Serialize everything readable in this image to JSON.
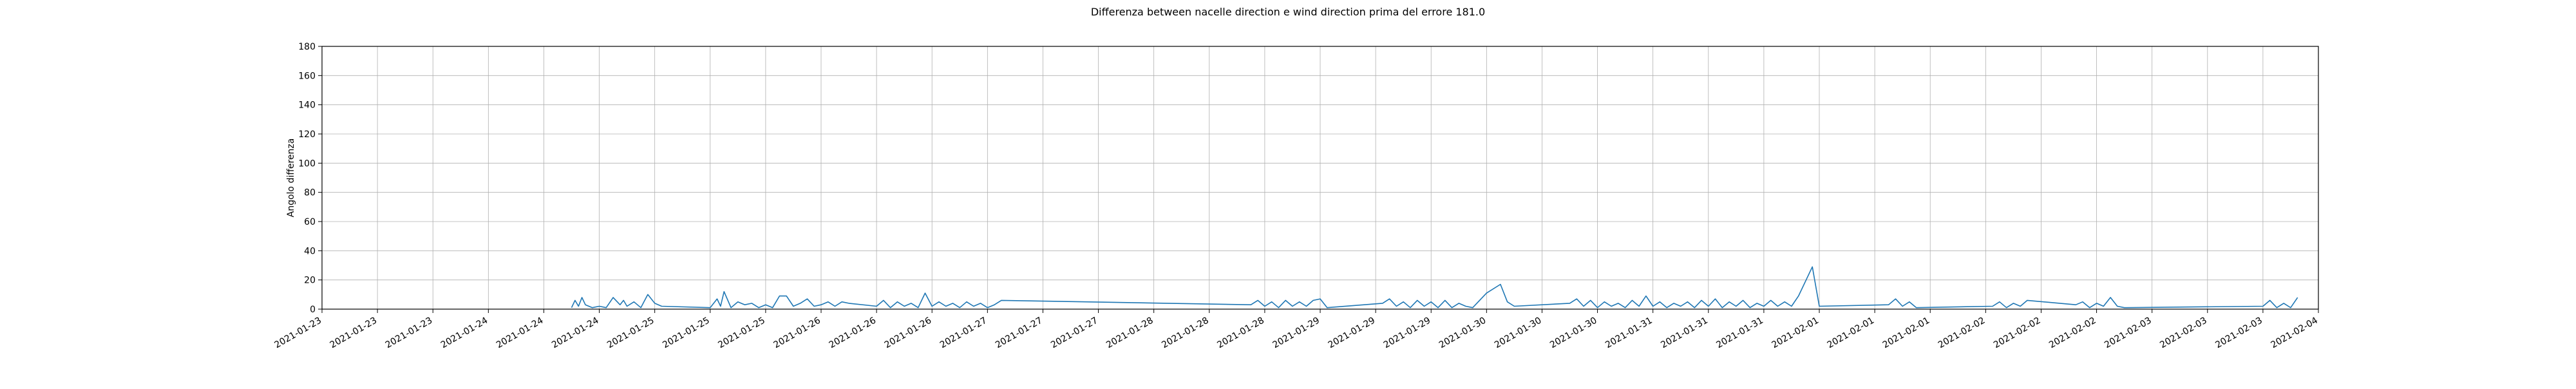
{
  "chart_data": {
    "type": "line",
    "title": "Differenza between nacelle direction e wind direction prima del errore 181.0",
    "xlabel": "",
    "ylabel": "Angolo differenza",
    "ylim": [
      0,
      180
    ],
    "yticks": [
      0,
      20,
      40,
      60,
      80,
      100,
      120,
      140,
      160,
      180
    ],
    "xlim": [
      "2021-01-23 00:00",
      "2021-02-04 00:00"
    ],
    "xticks": [
      {
        "t": "2021-01-23 00:00",
        "label": "2021-01-23"
      },
      {
        "t": "2021-01-23 08:00",
        "label": "2021-01-23"
      },
      {
        "t": "2021-01-23 16:00",
        "label": "2021-01-23"
      },
      {
        "t": "2021-01-24 00:00",
        "label": "2021-01-24"
      },
      {
        "t": "2021-01-24 08:00",
        "label": "2021-01-24"
      },
      {
        "t": "2021-01-24 16:00",
        "label": "2021-01-24"
      },
      {
        "t": "2021-01-25 00:00",
        "label": "2021-01-25"
      },
      {
        "t": "2021-01-25 08:00",
        "label": "2021-01-25"
      },
      {
        "t": "2021-01-25 16:00",
        "label": "2021-01-25"
      },
      {
        "t": "2021-01-26 00:00",
        "label": "2021-01-26"
      },
      {
        "t": "2021-01-26 08:00",
        "label": "2021-01-26"
      },
      {
        "t": "2021-01-26 16:00",
        "label": "2021-01-26"
      },
      {
        "t": "2021-01-27 00:00",
        "label": "2021-01-27"
      },
      {
        "t": "2021-01-27 08:00",
        "label": "2021-01-27"
      },
      {
        "t": "2021-01-27 16:00",
        "label": "2021-01-27"
      },
      {
        "t": "2021-01-28 00:00",
        "label": "2021-01-28"
      },
      {
        "t": "2021-01-28 08:00",
        "label": "2021-01-28"
      },
      {
        "t": "2021-01-28 16:00",
        "label": "2021-01-28"
      },
      {
        "t": "2021-01-29 00:00",
        "label": "2021-01-29"
      },
      {
        "t": "2021-01-29 08:00",
        "label": "2021-01-29"
      },
      {
        "t": "2021-01-29 16:00",
        "label": "2021-01-29"
      },
      {
        "t": "2021-01-30 00:00",
        "label": "2021-01-30"
      },
      {
        "t": "2021-01-30 08:00",
        "label": "2021-01-30"
      },
      {
        "t": "2021-01-30 16:00",
        "label": "2021-01-30"
      },
      {
        "t": "2021-01-31 00:00",
        "label": "2021-01-31"
      },
      {
        "t": "2021-01-31 08:00",
        "label": "2021-01-31"
      },
      {
        "t": "2021-01-31 16:00",
        "label": "2021-01-31"
      },
      {
        "t": "2021-02-01 00:00",
        "label": "2021-02-01"
      },
      {
        "t": "2021-02-01 08:00",
        "label": "2021-02-01"
      },
      {
        "t": "2021-02-01 16:00",
        "label": "2021-02-01"
      },
      {
        "t": "2021-02-02 00:00",
        "label": "2021-02-02"
      },
      {
        "t": "2021-02-02 08:00",
        "label": "2021-02-02"
      },
      {
        "t": "2021-02-02 16:00",
        "label": "2021-02-02"
      },
      {
        "t": "2021-02-03 00:00",
        "label": "2021-02-03"
      },
      {
        "t": "2021-02-03 08:00",
        "label": "2021-02-03"
      },
      {
        "t": "2021-02-03 16:00",
        "label": "2021-02-03"
      },
      {
        "t": "2021-02-04 00:00",
        "label": "2021-02-04"
      }
    ],
    "grid": true,
    "series": [
      {
        "color": "#1f77b4",
        "points": [
          [
            "2021-01-24 12:00",
            1
          ],
          [
            "2021-01-24 12:30",
            6
          ],
          [
            "2021-01-24 13:00",
            2
          ],
          [
            "2021-01-24 13:30",
            8
          ],
          [
            "2021-01-24 14:00",
            3
          ],
          [
            "2021-01-24 15:00",
            1
          ],
          [
            "2021-01-24 16:00",
            2
          ],
          [
            "2021-01-24 17:00",
            1
          ],
          [
            "2021-01-24 18:00",
            8
          ],
          [
            "2021-01-24 19:00",
            3
          ],
          [
            "2021-01-24 19:30",
            6
          ],
          [
            "2021-01-24 20:00",
            2
          ],
          [
            "2021-01-24 21:00",
            5
          ],
          [
            "2021-01-24 22:00",
            1
          ],
          [
            "2021-01-24 23:00",
            10
          ],
          [
            "2021-01-25 00:00",
            4
          ],
          [
            "2021-01-25 01:00",
            2
          ],
          [
            "2021-01-25 08:00",
            1
          ],
          [
            "2021-01-25 09:00",
            7
          ],
          [
            "2021-01-25 09:30",
            2
          ],
          [
            "2021-01-25 10:00",
            12
          ],
          [
            "2021-01-25 11:00",
            1
          ],
          [
            "2021-01-25 12:00",
            5
          ],
          [
            "2021-01-25 13:00",
            3
          ],
          [
            "2021-01-25 14:00",
            4
          ],
          [
            "2021-01-25 15:00",
            1
          ],
          [
            "2021-01-25 16:00",
            3
          ],
          [
            "2021-01-25 17:00",
            1
          ],
          [
            "2021-01-25 18:00",
            9
          ],
          [
            "2021-01-25 19:00",
            9
          ],
          [
            "2021-01-25 20:00",
            2
          ],
          [
            "2021-01-25 21:00",
            4
          ],
          [
            "2021-01-25 22:00",
            7
          ],
          [
            "2021-01-25 23:00",
            2
          ],
          [
            "2021-01-26 00:00",
            3
          ],
          [
            "2021-01-26 01:00",
            5
          ],
          [
            "2021-01-26 02:00",
            2
          ],
          [
            "2021-01-26 03:00",
            5
          ],
          [
            "2021-01-26 04:00",
            4
          ],
          [
            "2021-01-26 08:00",
            2
          ],
          [
            "2021-01-26 09:00",
            6
          ],
          [
            "2021-01-26 10:00",
            1
          ],
          [
            "2021-01-26 11:00",
            5
          ],
          [
            "2021-01-26 12:00",
            2
          ],
          [
            "2021-01-26 13:00",
            4
          ],
          [
            "2021-01-26 14:00",
            1
          ],
          [
            "2021-01-26 15:00",
            11
          ],
          [
            "2021-01-26 16:00",
            2
          ],
          [
            "2021-01-26 17:00",
            5
          ],
          [
            "2021-01-26 18:00",
            2
          ],
          [
            "2021-01-26 19:00",
            4
          ],
          [
            "2021-01-26 20:00",
            1
          ],
          [
            "2021-01-26 21:00",
            5
          ],
          [
            "2021-01-26 22:00",
            2
          ],
          [
            "2021-01-26 23:00",
            4
          ],
          [
            "2021-01-27 00:00",
            1
          ],
          [
            "2021-01-27 01:00",
            3
          ],
          [
            "2021-01-27 02:00",
            6
          ],
          [
            "2021-01-28 14:00",
            3
          ],
          [
            "2021-01-28 15:00",
            6
          ],
          [
            "2021-01-28 16:00",
            2
          ],
          [
            "2021-01-28 17:00",
            5
          ],
          [
            "2021-01-28 18:00",
            1
          ],
          [
            "2021-01-28 19:00",
            6
          ],
          [
            "2021-01-28 20:00",
            2
          ],
          [
            "2021-01-28 21:00",
            5
          ],
          [
            "2021-01-28 22:00",
            2
          ],
          [
            "2021-01-28 23:00",
            6
          ],
          [
            "2021-01-29 00:00",
            7
          ],
          [
            "2021-01-29 01:00",
            1
          ],
          [
            "2021-01-29 09:00",
            4
          ],
          [
            "2021-01-29 10:00",
            7
          ],
          [
            "2021-01-29 11:00",
            2
          ],
          [
            "2021-01-29 12:00",
            5
          ],
          [
            "2021-01-29 13:00",
            1
          ],
          [
            "2021-01-29 14:00",
            6
          ],
          [
            "2021-01-29 15:00",
            2
          ],
          [
            "2021-01-29 16:00",
            5
          ],
          [
            "2021-01-29 17:00",
            1
          ],
          [
            "2021-01-29 18:00",
            6
          ],
          [
            "2021-01-29 19:00",
            1
          ],
          [
            "2021-01-29 20:00",
            4
          ],
          [
            "2021-01-29 21:00",
            2
          ],
          [
            "2021-01-29 22:00",
            1
          ],
          [
            "2021-01-30 00:00",
            11
          ],
          [
            "2021-01-30 02:00",
            17
          ],
          [
            "2021-01-30 03:00",
            5
          ],
          [
            "2021-01-30 04:00",
            2
          ],
          [
            "2021-01-30 12:00",
            4
          ],
          [
            "2021-01-30 13:00",
            7
          ],
          [
            "2021-01-30 14:00",
            2
          ],
          [
            "2021-01-30 15:00",
            6
          ],
          [
            "2021-01-30 16:00",
            1
          ],
          [
            "2021-01-30 17:00",
            5
          ],
          [
            "2021-01-30 18:00",
            2
          ],
          [
            "2021-01-30 19:00",
            4
          ],
          [
            "2021-01-30 20:00",
            1
          ],
          [
            "2021-01-30 21:00",
            6
          ],
          [
            "2021-01-30 22:00",
            2
          ],
          [
            "2021-01-30 23:00",
            9
          ],
          [
            "2021-01-31 00:00",
            2
          ],
          [
            "2021-01-31 01:00",
            5
          ],
          [
            "2021-01-31 02:00",
            1
          ],
          [
            "2021-01-31 03:00",
            4
          ],
          [
            "2021-01-31 04:00",
            2
          ],
          [
            "2021-01-31 05:00",
            5
          ],
          [
            "2021-01-31 06:00",
            1
          ],
          [
            "2021-01-31 07:00",
            6
          ],
          [
            "2021-01-31 08:00",
            2
          ],
          [
            "2021-01-31 09:00",
            7
          ],
          [
            "2021-01-31 10:00",
            1
          ],
          [
            "2021-01-31 11:00",
            5
          ],
          [
            "2021-01-31 12:00",
            2
          ],
          [
            "2021-01-31 13:00",
            6
          ],
          [
            "2021-01-31 14:00",
            1
          ],
          [
            "2021-01-31 15:00",
            4
          ],
          [
            "2021-01-31 16:00",
            2
          ],
          [
            "2021-01-31 17:00",
            6
          ],
          [
            "2021-01-31 18:00",
            2
          ],
          [
            "2021-01-31 19:00",
            5
          ],
          [
            "2021-01-31 20:00",
            2
          ],
          [
            "2021-01-31 21:00",
            9
          ],
          [
            "2021-01-31 23:00",
            29
          ],
          [
            "2021-02-01 00:00",
            2
          ],
          [
            "2021-02-01 10:00",
            3
          ],
          [
            "2021-02-01 11:00",
            7
          ],
          [
            "2021-02-01 12:00",
            2
          ],
          [
            "2021-02-01 13:00",
            5
          ],
          [
            "2021-02-01 14:00",
            1
          ],
          [
            "2021-02-02 01:00",
            2
          ],
          [
            "2021-02-02 02:00",
            5
          ],
          [
            "2021-02-02 03:00",
            1
          ],
          [
            "2021-02-02 04:00",
            4
          ],
          [
            "2021-02-02 05:00",
            2
          ],
          [
            "2021-02-02 06:00",
            6
          ],
          [
            "2021-02-02 13:00",
            3
          ],
          [
            "2021-02-02 14:00",
            5
          ],
          [
            "2021-02-02 15:00",
            1
          ],
          [
            "2021-02-02 16:00",
            4
          ],
          [
            "2021-02-02 17:00",
            2
          ],
          [
            "2021-02-02 18:00",
            8
          ],
          [
            "2021-02-02 19:00",
            2
          ],
          [
            "2021-02-02 20:00",
            1
          ],
          [
            "2021-02-03 16:00",
            2
          ],
          [
            "2021-02-03 17:00",
            6
          ],
          [
            "2021-02-03 18:00",
            1
          ],
          [
            "2021-02-03 19:00",
            4
          ],
          [
            "2021-02-03 20:00",
            1
          ],
          [
            "2021-02-03 21:00",
            8
          ]
        ]
      }
    ]
  }
}
